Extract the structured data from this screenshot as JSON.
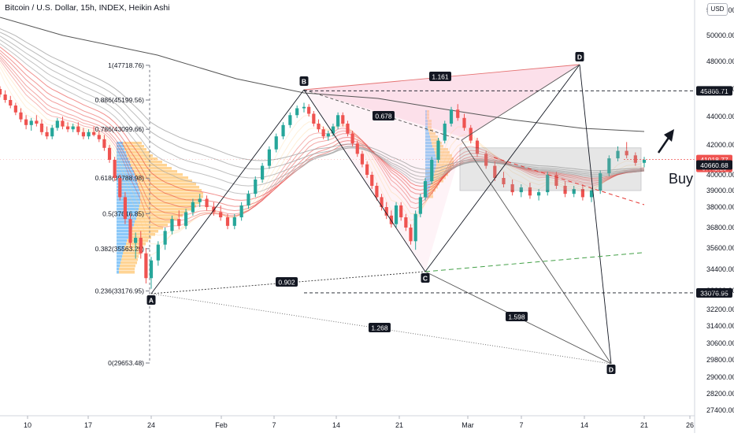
{
  "header": {
    "title": "Bitcoin / U.S. Dollar, 15h, INDEX, Heikin Ashi",
    "currency_button": "USD"
  },
  "colors": {
    "up": "#26a69a",
    "down": "#ef5350",
    "ribbon_red": "#e53935",
    "ribbon_gray": "#9e9e9e",
    "harmonic_fill": "#f8bbd0",
    "fib_line": "#787b86",
    "green_trend": "#43a047",
    "volume_blue": "#64b5f6",
    "volume_orange": "#ffb74d"
  },
  "chart_data": {
    "type": "candlestick",
    "chart_style": "Heikin Ashi",
    "symbol": "Bitcoin / U.S. Dollar",
    "interval": "15h",
    "exchange": "INDEX",
    "ylim": [
      27000,
      52500
    ],
    "y_ticks": [
      52400,
      50000,
      48000,
      46000,
      44000,
      42000,
      40000,
      39000,
      38000,
      36800,
      35600,
      34400,
      33200,
      32200,
      31400,
      30600,
      29800,
      29000,
      28200,
      27400
    ],
    "x_ticks": [
      "10",
      "17",
      "24",
      "Feb",
      "7",
      "14",
      "21",
      "Mar",
      "7",
      "14",
      "21",
      "26"
    ],
    "price_labels": [
      {
        "value": 45866.71,
        "text": "45866.71",
        "style": "dark"
      },
      {
        "value": 41018.77,
        "text": "41018.77",
        "sub": "07:42:23",
        "style": "red"
      },
      {
        "value": 40660.68,
        "text": "40660.68",
        "style": "dark"
      },
      {
        "value": 33076.95,
        "text": "33076.95",
        "style": "dark"
      }
    ],
    "fibonacci": [
      {
        "ratio": "1",
        "price": 47718.76,
        "label": "1(47718.76)"
      },
      {
        "ratio": "0.886",
        "price": 45199.56,
        "label": "0.886(45199.56)"
      },
      {
        "ratio": "0.786",
        "price": 43099.66,
        "label": "0.786(43099.66)"
      },
      {
        "ratio": "0.618",
        "price": 39788.98,
        "label": "0.618(39788.98)"
      },
      {
        "ratio": "0.5",
        "price": 37616.85,
        "label": "0.5(37616.85)"
      },
      {
        "ratio": "0.382",
        "price": 35563.29,
        "label": "0.382(35563.29)"
      },
      {
        "ratio": "0.236",
        "price": 33176.95,
        "label": "0.236(33176.95)"
      },
      {
        "ratio": "0",
        "price": 29653.48,
        "label": "0(29653.48)"
      }
    ],
    "harmonic_points": [
      {
        "label": "A",
        "date": "Jan 24",
        "price": 33076.95
      },
      {
        "label": "B",
        "date": "Feb 9",
        "price": 45866.71
      },
      {
        "label": "C",
        "date": "Feb 24",
        "price": 34400
      },
      {
        "label": "D",
        "date": "Mar 13",
        "price": 47800
      },
      {
        "label": "D",
        "date": "Mar 16",
        "price": 29600
      }
    ],
    "harmonic_ratios": [
      {
        "text": "1.161"
      },
      {
        "text": "0.678"
      },
      {
        "text": "0.902"
      },
      {
        "text": "1.598"
      },
      {
        "text": "1.268"
      }
    ],
    "candles_ohlc_approx": [
      [
        46000,
        46200,
        45400,
        45600
      ],
      [
        45600,
        45900,
        45000,
        45200
      ],
      [
        45200,
        45500,
        44600,
        44800
      ],
      [
        44800,
        45000,
        44100,
        44300
      ],
      [
        44300,
        44600,
        43600,
        43800
      ],
      [
        43800,
        44100,
        43100,
        43400
      ],
      [
        43400,
        43900,
        43000,
        43700
      ],
      [
        43700,
        44100,
        43300,
        43500
      ],
      [
        43500,
        43800,
        42700,
        42900
      ],
      [
        42900,
        43300,
        42400,
        42600
      ],
      [
        42600,
        43400,
        42400,
        43200
      ],
      [
        43200,
        43900,
        43000,
        43700
      ],
      [
        43700,
        44000,
        43100,
        43300
      ],
      [
        43300,
        43600,
        42900,
        43100
      ],
      [
        43100,
        43500,
        42900,
        43300
      ],
      [
        43300,
        43600,
        42700,
        42900
      ],
      [
        42900,
        43200,
        42400,
        42600
      ],
      [
        42600,
        43100,
        42400,
        42900
      ],
      [
        42900,
        43300,
        42600,
        42700
      ],
      [
        42700,
        43000,
        42200,
        42400
      ],
      [
        42400,
        42700,
        41600,
        41800
      ],
      [
        41800,
        42000,
        40800,
        41000
      ],
      [
        41000,
        41200,
        39600,
        39800
      ],
      [
        39800,
        40000,
        38400,
        38600
      ],
      [
        38600,
        38900,
        37000,
        37300
      ],
      [
        37300,
        37600,
        35600,
        35900
      ],
      [
        35900,
        36500,
        35000,
        36200
      ],
      [
        36200,
        36600,
        35000,
        35300
      ],
      [
        35300,
        35600,
        33600,
        33900
      ],
      [
        33900,
        35100,
        33300,
        34900
      ],
      [
        34900,
        36000,
        34600,
        35800
      ],
      [
        35800,
        36800,
        35500,
        36600
      ],
      [
        36600,
        37500,
        36400,
        37300
      ],
      [
        37300,
        37800,
        36700,
        36900
      ],
      [
        36900,
        37900,
        36700,
        37700
      ],
      [
        37700,
        38500,
        37500,
        38300
      ],
      [
        38300,
        38800,
        38000,
        38500
      ],
      [
        38500,
        38700,
        37800,
        38000
      ],
      [
        38000,
        38300,
        37500,
        37700
      ],
      [
        37700,
        38100,
        37200,
        37400
      ],
      [
        37400,
        37600,
        36700,
        36900
      ],
      [
        36900,
        37600,
        36700,
        37400
      ],
      [
        37400,
        38300,
        37200,
        38100
      ],
      [
        38100,
        39000,
        37900,
        38800
      ],
      [
        38800,
        39900,
        38600,
        39700
      ],
      [
        39700,
        40800,
        39500,
        40600
      ],
      [
        40600,
        41900,
        40400,
        41700
      ],
      [
        41700,
        42800,
        41500,
        42600
      ],
      [
        42600,
        43600,
        42400,
        43400
      ],
      [
        43400,
        44300,
        43200,
        44100
      ],
      [
        44100,
        44800,
        43900,
        44600
      ],
      [
        44600,
        45000,
        44300,
        44700
      ],
      [
        44700,
        44900,
        44000,
        44200
      ],
      [
        44200,
        44400,
        43300,
        43500
      ],
      [
        43500,
        43800,
        42900,
        43100
      ],
      [
        43100,
        43300,
        42400,
        42600
      ],
      [
        42600,
        43000,
        42300,
        42800
      ],
      [
        42800,
        43500,
        42600,
        43300
      ],
      [
        43300,
        44300,
        43100,
        44100
      ],
      [
        44100,
        44300,
        43300,
        43500
      ],
      [
        43500,
        43700,
        42600,
        42800
      ],
      [
        42800,
        43000,
        41900,
        42100
      ],
      [
        42100,
        42300,
        41200,
        41400
      ],
      [
        41400,
        41600,
        40500,
        40700
      ],
      [
        40700,
        40900,
        39800,
        40000
      ],
      [
        40000,
        40200,
        39100,
        39300
      ],
      [
        39300,
        39500,
        38400,
        38600
      ],
      [
        38600,
        38800,
        37800,
        38000
      ],
      [
        38000,
        38300,
        37300,
        37500
      ],
      [
        37500,
        37800,
        36800,
        37000
      ],
      [
        37000,
        38300,
        36800,
        38100
      ],
      [
        38100,
        38300,
        37200,
        37400
      ],
      [
        37400,
        37600,
        36600,
        36800
      ],
      [
        36800,
        37000,
        35800,
        36000
      ],
      [
        36000,
        37800,
        35500,
        37600
      ],
      [
        37600,
        38800,
        37400,
        38600
      ],
      [
        38600,
        39800,
        38400,
        39600
      ],
      [
        39600,
        41200,
        39400,
        41000
      ],
      [
        41000,
        42500,
        40800,
        42300
      ],
      [
        42300,
        43700,
        42100,
        43500
      ],
      [
        43500,
        44700,
        43300,
        44500
      ],
      [
        44500,
        44900,
        43700,
        43900
      ],
      [
        43900,
        44200,
        43000,
        43200
      ],
      [
        43200,
        43400,
        42100,
        42300
      ],
      [
        42300,
        42500,
        41200,
        41400
      ],
      [
        41400,
        41600,
        40400,
        40600
      ],
      [
        40600,
        40900,
        39600,
        39800
      ],
      [
        39800,
        40200,
        39200,
        39400
      ],
      [
        39400,
        39700,
        38700,
        38900
      ],
      [
        38900,
        39400,
        38600,
        39200
      ],
      [
        39200,
        39500,
        38500,
        38700
      ],
      [
        38700,
        39100,
        38400,
        38900
      ],
      [
        38900,
        40200,
        38700,
        40000
      ],
      [
        40000,
        40200,
        39100,
        39300
      ],
      [
        39300,
        39600,
        38600,
        38800
      ],
      [
        38800,
        39300,
        38600,
        39100
      ],
      [
        39100,
        39400,
        38400,
        38600
      ],
      [
        38600,
        39200,
        38300,
        39000
      ],
      [
        39000,
        40300,
        38800,
        40100
      ],
      [
        40100,
        41300,
        39900,
        41100
      ],
      [
        41100,
        41900,
        40900,
        41600
      ],
      [
        41600,
        42200,
        41100,
        41300
      ],
      [
        41300,
        41500,
        40600,
        40800
      ],
      [
        40800,
        41200,
        40500,
        41000
      ]
    ]
  },
  "annotations": {
    "buy_text": "Buy"
  }
}
